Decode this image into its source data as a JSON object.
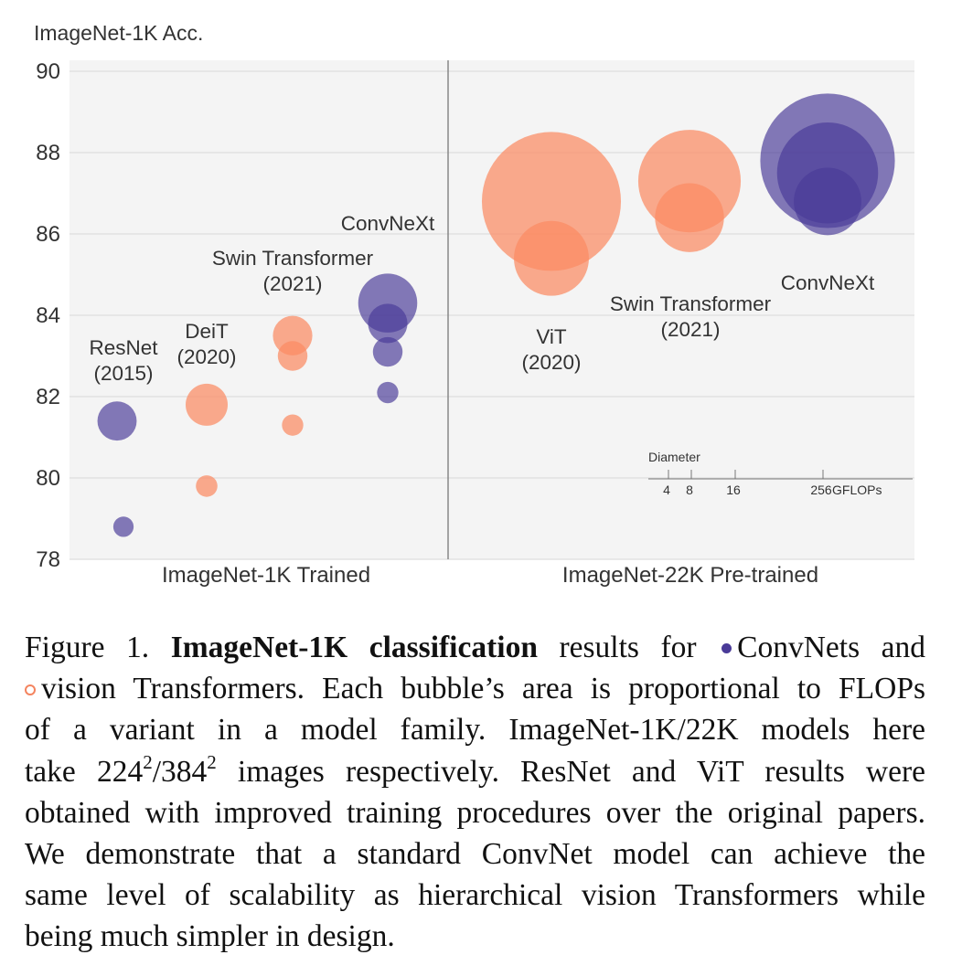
{
  "chart_data": {
    "type": "bubble",
    "ylabel": "ImageNet-1K Acc.",
    "ylim": [
      78,
      90
    ],
    "yticks": [
      "78",
      "80",
      "82",
      "84",
      "86",
      "88",
      "90"
    ],
    "grid": true,
    "panels": [
      "ImageNet-1K Trained",
      "ImageNet-22K Pre-trained"
    ],
    "colors": {
      "convnet": "#4a3b98",
      "transformer": "#fb8a62"
    },
    "series": [
      {
        "panel": 0,
        "family": "convnet",
        "label_lines": [
          "ResNet",
          "(2015)"
        ],
        "points": [
          {
            "y": 78.8,
            "gflops": 4.1
          },
          {
            "y": 81.4,
            "gflops": 15.2
          }
        ]
      },
      {
        "panel": 0,
        "family": "transformer",
        "label_lines": [
          "DeiT",
          "(2020)"
        ],
        "points": [
          {
            "y": 79.8,
            "gflops": 4.6
          },
          {
            "y": 81.8,
            "gflops": 17.5
          }
        ]
      },
      {
        "panel": 0,
        "family": "transformer",
        "label_lines": [
          "Swin Transformer",
          "(2021)"
        ],
        "points": [
          {
            "y": 81.3,
            "gflops": 4.5
          },
          {
            "y": 83.0,
            "gflops": 8.7
          },
          {
            "y": 83.5,
            "gflops": 15.4
          }
        ]
      },
      {
        "panel": 0,
        "family": "convnet",
        "label_lines": [
          "ConvNeXt"
        ],
        "points": [
          {
            "y": 82.1,
            "gflops": 4.5
          },
          {
            "y": 83.1,
            "gflops": 8.7
          },
          {
            "y": 83.8,
            "gflops": 15.4
          },
          {
            "y": 84.3,
            "gflops": 34.4
          }
        ]
      },
      {
        "panel": 1,
        "family": "transformer",
        "label_lines": [
          "ViT",
          "(2020)"
        ],
        "points": [
          {
            "y": 86.8,
            "gflops": 191.1
          },
          {
            "y": 85.4,
            "gflops": 55.5
          }
        ]
      },
      {
        "panel": 1,
        "family": "transformer",
        "label_lines": [
          "Swin Transformer",
          "(2021)"
        ],
        "points": [
          {
            "y": 87.3,
            "gflops": 103.9
          },
          {
            "y": 86.4,
            "gflops": 47.0
          }
        ]
      },
      {
        "panel": 1,
        "family": "convnet",
        "label_lines": [
          "ConvNeXt"
        ],
        "points": [
          {
            "y": 87.8,
            "gflops": 179.0
          },
          {
            "y": 87.5,
            "gflops": 101.0
          },
          {
            "y": 86.8,
            "gflops": 45.1
          }
        ]
      }
    ],
    "size_legend": {
      "title": "Diameter",
      "ticks": [
        "4",
        "8",
        "16",
        "256"
      ],
      "unit": "GFLOPs"
    }
  },
  "caption": {
    "figure_number": "Figure 1.",
    "bold_title": "ImageNet-1K classification",
    "line1_rest": "results for",
    "convnets": "ConvNets and",
    "transformers": "vision Transformers. Each bubble’s area is proportional to FLOPs",
    "line3": "of a variant in a model family. ImageNet-1K/22K models here",
    "line4_a": "take 224",
    "line4_sup1": "2",
    "line4_b": "/384",
    "line4_sup2": "2",
    "line4_c": "images respectively. ResNet and ViT results were",
    "line5": "obtained with improved training procedures over the original papers.",
    "line6": "We demonstrate that a standard ConvNet model can achieve the",
    "line7": "same level of scalability as hierarchical vision Transformers while",
    "line8": "being much simpler in design."
  }
}
